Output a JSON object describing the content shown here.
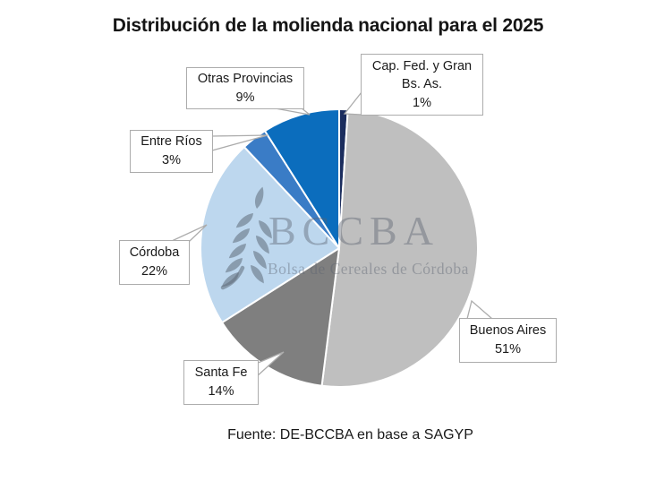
{
  "page": {
    "background": "#ffffff"
  },
  "chart_data": {
    "type": "pie",
    "title": "Distribución de la molienda nacional para el 2025",
    "source_note": "Fuente: DE-BCCBA en base a SAGYP",
    "unit": "percent",
    "start_angle_deg": 0,
    "direction": "clockwise",
    "slice_border_color": "#FFFFFF",
    "slices": [
      {
        "label": "Cap. Fed. y Gran Bs. As.",
        "value": 1,
        "pct": "1%",
        "color": "#1B2D5E"
      },
      {
        "label": "Buenos Aires",
        "value": 51,
        "pct": "51%",
        "color": "#BFBFBF"
      },
      {
        "label": "Santa Fe",
        "value": 14,
        "pct": "14%",
        "color": "#7F7F7F"
      },
      {
        "label": "Córdoba",
        "value": 22,
        "pct": "22%",
        "color": "#BDD7EE"
      },
      {
        "label": "Entre Ríos",
        "value": 3,
        "pct": "3%",
        "color": "#3A7CC6"
      },
      {
        "label": "Otras Provincias",
        "value": 9,
        "pct": "9%",
        "color": "#0B6DBD"
      }
    ]
  },
  "watermark": {
    "acronym": "BCCBA",
    "name": "Bolsa de Cereales de Córdoba"
  },
  "style": {
    "callout_border": "#ACACAC",
    "text_color": "#1A1A1A",
    "watermark_color": "#5A6270"
  }
}
